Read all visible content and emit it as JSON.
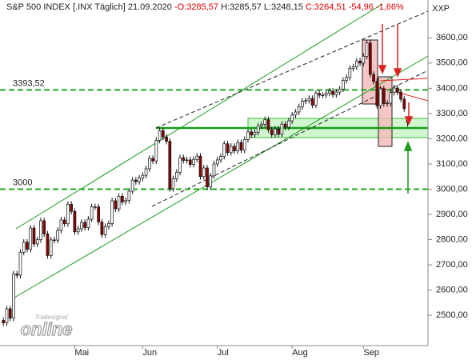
{
  "chart_data": {
    "type": "candlestick",
    "header": {
      "title": "S&P 500 INDEX [.INX  Täglich]",
      "date": "21.09.2020",
      "open": "-O:3285,57",
      "high_low": "H:3285,57 L:3248,15",
      "change": "C:3264,51 -54,96 -1,66%"
    },
    "axis_label": "XXP",
    "watermark": [
      "Tradesignal",
      "online"
    ],
    "open": [
      2480,
      2470,
      2526,
      2489,
      2664,
      2659,
      2750,
      2790,
      2762,
      2846,
      2783,
      2800,
      2875,
      2823,
      2737,
      2799,
      2798,
      2837,
      2878,
      2863,
      2940,
      2912,
      2831,
      2843,
      2868,
      2848,
      2881,
      2930,
      2930,
      2870,
      2820,
      2852,
      2864,
      2954,
      2922,
      2972,
      2949,
      2955,
      2992,
      3036,
      3030,
      3044,
      3055,
      3081,
      3122,
      3112,
      3194,
      3232,
      3207,
      3190,
      3002,
      3041,
      3067,
      3125,
      3114,
      3116,
      3098,
      3118,
      3131,
      3050,
      3084,
      3009,
      3053,
      3100,
      3116,
      3130,
      3180,
      3145,
      3170,
      3152,
      3185,
      3155,
      3197,
      3227,
      3215,
      3225,
      3251,
      3257,
      3276,
      3236,
      3216,
      3239,
      3218,
      3258,
      3246,
      3271,
      3294,
      3306,
      3327,
      3349,
      3351,
      3360,
      3333,
      3380,
      3373,
      3373,
      3381,
      3389,
      3375,
      3385,
      3397,
      3431,
      3443,
      3479,
      3485,
      3508,
      3500,
      3527,
      3580,
      3455,
      3427,
      3331,
      3398,
      3339,
      3341,
      3383,
      3401,
      3385,
      3357,
      3285.57
    ],
    "high": [
      2492,
      2538,
      2538,
      2676,
      2676,
      2762,
      2802,
      2802,
      2858,
      2858,
      2812,
      2887,
      2887,
      2835,
      2811,
      2811,
      2849,
      2890,
      2890,
      2952,
      2952,
      2924,
      2855,
      2880,
      2880,
      2893,
      2942,
      2942,
      2942,
      2882,
      2864,
      2876,
      2966,
      2966,
      2984,
      2984,
      2967,
      3004,
      3048,
      3048,
      3056,
      3067,
      3093,
      3134,
      3134,
      3206,
      3244,
      3244,
      3219,
      3202,
      3053,
      3079,
      3137,
      3137,
      3128,
      3128,
      3130,
      3143,
      3143,
      3096,
      3096,
      3065,
      3112,
      3128,
      3142,
      3192,
      3192,
      3182,
      3182,
      3197,
      3197,
      3209,
      3239,
      3239,
      3237,
      3263,
      3269,
      3288,
      3288,
      3248,
      3251,
      3251,
      3270,
      3270,
      3283,
      3306,
      3318,
      3339,
      3361,
      3363,
      3372,
      3372,
      3392,
      3392,
      3385,
      3393,
      3401,
      3401,
      3397,
      3409,
      3443,
      3455,
      3491,
      3497,
      3520,
      3520,
      3539,
      3592,
      3592,
      3467,
      3439,
      3410,
      3410,
      3353,
      3395,
      3413,
      3413,
      3397,
      3369,
      3285.57
    ],
    "low": [
      2458,
      2458,
      2477,
      2477,
      2647,
      2647,
      2738,
      2750,
      2750,
      2771,
      2771,
      2788,
      2811,
      2725,
      2725,
      2786,
      2786,
      2825,
      2851,
      2851,
      2900,
      2819,
      2819,
      2831,
      2836,
      2836,
      2869,
      2918,
      2858,
      2808,
      2808,
      2840,
      2852,
      2910,
      2910,
      2937,
      2937,
      2943,
      2980,
      3018,
      3018,
      3032,
      3043,
      3069,
      3100,
      3100,
      3182,
      3195,
      3178,
      2990,
      2990,
      3029,
      3055,
      3102,
      3102,
      3086,
      3086,
      3106,
      3038,
      3038,
      2997,
      2997,
      3041,
      3088,
      3104,
      3118,
      3133,
      3133,
      3140,
      3140,
      3143,
      3143,
      3185,
      3203,
      3203,
      3213,
      3239,
      3245,
      3224,
      3204,
      3204,
      3206,
      3206,
      3234,
      3234,
      3259,
      3282,
      3294,
      3315,
      3337,
      3339,
      3321,
      3321,
      3361,
      3361,
      3361,
      3369,
      3363,
      3363,
      3373,
      3385,
      3419,
      3431,
      3467,
      3473,
      3488,
      3488,
      3515,
      3443,
      3415,
      3319,
      3319,
      3327,
      3327,
      3329,
      3371,
      3373,
      3345,
      3307,
      3248.15
    ],
    "close": [
      2470,
      2526,
      2489,
      2664,
      2659,
      2750,
      2790,
      2762,
      2846,
      2783,
      2800,
      2875,
      2823,
      2737,
      2799,
      2798,
      2837,
      2878,
      2863,
      2940,
      2912,
      2831,
      2843,
      2868,
      2848,
      2881,
      2930,
      2930,
      2870,
      2820,
      2852,
      2864,
      2954,
      2922,
      2972,
      2949,
      2955,
      2992,
      3036,
      3030,
      3044,
      3055,
      3081,
      3122,
      3112,
      3194,
      3232,
      3207,
      3190,
      3002,
      3041,
      3067,
      3125,
      3114,
      3116,
      3098,
      3118,
      3131,
      3050,
      3084,
      3009,
      3053,
      3100,
      3116,
      3130,
      3180,
      3145,
      3170,
      3152,
      3185,
      3155,
      3197,
      3227,
      3215,
      3225,
      3251,
      3257,
      3276,
      3236,
      3216,
      3239,
      3218,
      3258,
      3246,
      3271,
      3294,
      3306,
      3327,
      3349,
      3351,
      3360,
      3333,
      3380,
      3373,
      3373,
      3381,
      3389,
      3375,
      3385,
      3397,
      3431,
      3443,
      3479,
      3485,
      3508,
      3500,
      3527,
      3580,
      3455,
      3427,
      3331,
      3398,
      3339,
      3341,
      3383,
      3401,
      3385,
      3357,
      3319,
      3264.51
    ],
    "up_color": "#ffffff",
    "down_color": "#8b0000",
    "xlim": [
      -1,
      125
    ],
    "xticks": [
      {
        "value": 21,
        "label": "Mai"
      },
      {
        "value": 41,
        "label": "Jun"
      },
      {
        "value": 63,
        "label": "Jul"
      },
      {
        "value": 85,
        "label": "Aug"
      },
      {
        "value": 106,
        "label": "Sep"
      }
    ],
    "ylim": [
      2380,
      3750
    ],
    "yticks": [
      {
        "value": 2500,
        "label": "2500,00"
      },
      {
        "value": 2600,
        "label": "2600,00"
      },
      {
        "value": 2700,
        "label": "2700,00"
      },
      {
        "value": 2800,
        "label": "2800,00"
      },
      {
        "value": 2900,
        "label": "2900,00"
      },
      {
        "value": 3000,
        "label": "3000,00"
      },
      {
        "value": 3100,
        "label": "3100,00"
      },
      {
        "value": 3200,
        "label": "3200,00"
      },
      {
        "value": 3300,
        "label": "3300,00"
      },
      {
        "value": 3400,
        "label": "3400,00"
      },
      {
        "value": 3500,
        "label": "3500,00"
      },
      {
        "value": 3600,
        "label": "3600,00"
      }
    ],
    "levels": [
      {
        "value": 3393.52,
        "label": "3393,52"
      },
      {
        "value": 3000,
        "label": "3000"
      }
    ],
    "level_color": "#22aa22"
  }
}
